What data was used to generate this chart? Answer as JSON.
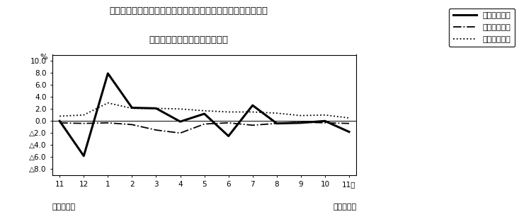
{
  "title_line1": "第４図　賃金、労働時間、常用雇用指数　対前年同月比の推移",
  "title_line2": "（規模５人以上　調査産業計）",
  "xlabel_months": [
    "11",
    "12",
    "1",
    "2",
    "3",
    "4",
    "5",
    "6",
    "7",
    "8",
    "9",
    "10",
    "11月"
  ],
  "x_values": [
    0,
    1,
    2,
    3,
    4,
    5,
    6,
    7,
    8,
    9,
    10,
    11,
    12
  ],
  "ylabel": "%",
  "ylim": [
    -9.0,
    11.0
  ],
  "yticks": [
    10.0,
    8.0,
    6.0,
    4.0,
    2.0,
    0.0,
    -2.0,
    -4.0,
    -6.0,
    -8.0
  ],
  "ytick_labels": [
    "10.0",
    "8.0",
    "6.0",
    "4.0",
    "2.0",
    "0.0",
    "△2.0",
    "△4.0",
    "△6.0",
    "△8.0"
  ],
  "label_bottom_left": "平成２２年",
  "label_bottom_right": "平成２３年",
  "series": {
    "genkin": {
      "label": "現金給与総額",
      "style": "solid",
      "linewidth": 2.2,
      "color": "#000000",
      "values": [
        0.0,
        -5.8,
        7.9,
        2.2,
        2.1,
        -0.1,
        1.2,
        -2.5,
        2.6,
        -0.4,
        -0.3,
        0.0,
        -1.8
      ]
    },
    "jitsu": {
      "label": "総実労働時間",
      "style": "dashdot",
      "linewidth": 1.3,
      "color": "#000000",
      "values": [
        -0.3,
        -0.4,
        -0.3,
        -0.6,
        -1.5,
        -2.0,
        -0.5,
        -0.3,
        -0.7,
        -0.4,
        -0.2,
        -0.3,
        -0.4
      ]
    },
    "koyo": {
      "label": "常用雇用指数",
      "style": "dotted",
      "linewidth": 1.3,
      "color": "#000000",
      "values": [
        0.8,
        1.0,
        3.0,
        2.1,
        2.1,
        2.0,
        1.7,
        1.5,
        1.5,
        1.3,
        0.9,
        1.0,
        0.5
      ]
    }
  },
  "background_color": "#ffffff",
  "legend_fontsize": 8,
  "title_fontsize": 9.5
}
